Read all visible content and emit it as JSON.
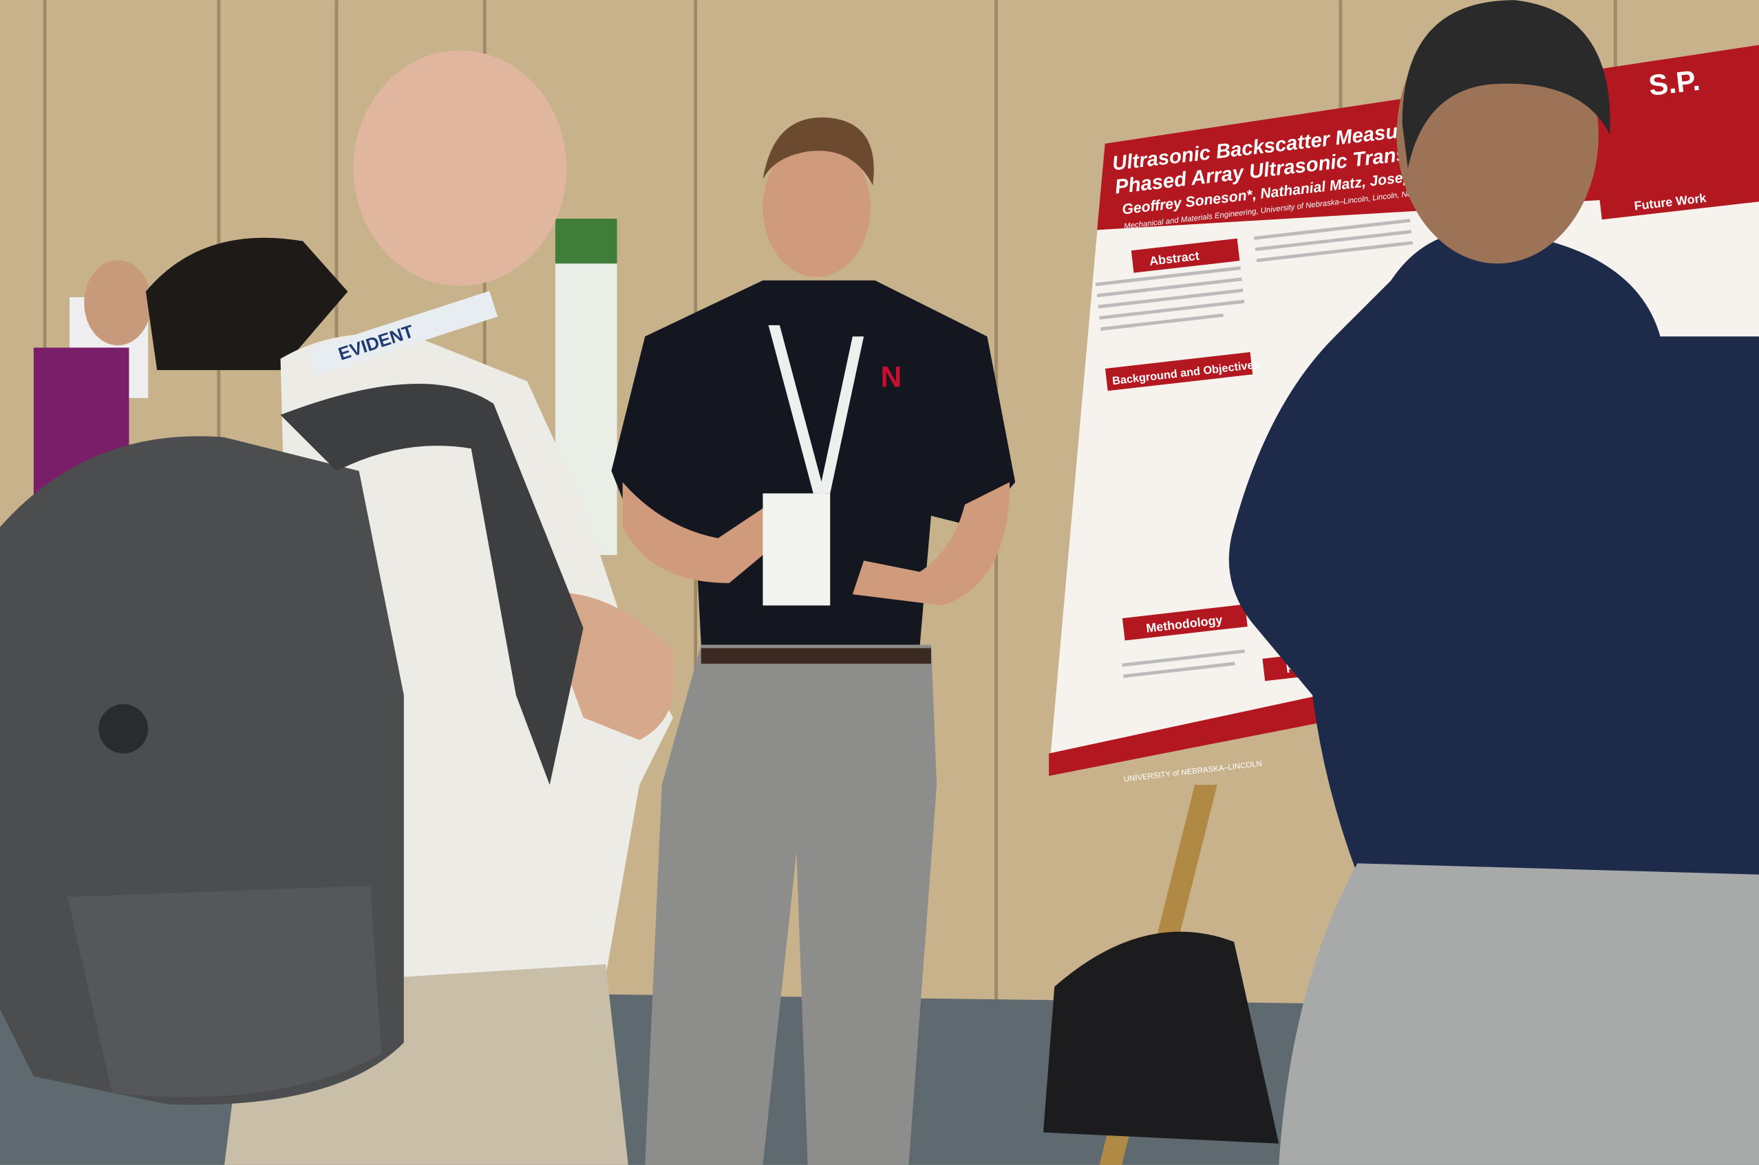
{
  "poster": {
    "title_line1": "Ultrasonic Backscatter Measurements",
    "title_line2": "Phased Array Ultrasonic Transducers",
    "authors": "Geoffrey Soneson*, Nathanial Matz, Joseph Turner",
    "affiliation": "Mechanical and Materials Engineering, University of Nebraska–Lincoln, Lincoln, Nebraska, USA",
    "sections": [
      "Abstract",
      "Background and Objectives",
      "Methodology",
      "Results",
      "Future Work"
    ],
    "footer": "UNIVERSITY of NEBRASKA–LINCOLN",
    "logo": "S.P."
  },
  "lanyard": "EVIDENT",
  "shirt_logo": "N"
}
